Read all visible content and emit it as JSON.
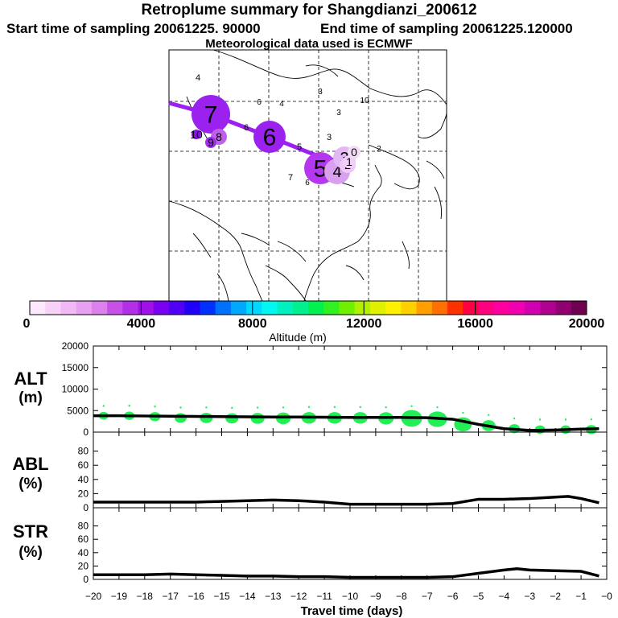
{
  "header": {
    "title": "Retroplume summary for Shangdianzi_200612",
    "start_time": "Start time of sampling 20061225. 90000",
    "end_time": "End time of sampling 20061225.120000",
    "met_data": "Meteorological data used is ECMWF"
  },
  "map": {
    "markers": [
      {
        "label": "7",
        "size": "large",
        "color": "#9b22ee"
      },
      {
        "label": "6",
        "size": "large",
        "color": "#9b22ee"
      },
      {
        "label": "5",
        "size": "large",
        "color": "#b438ee"
      },
      {
        "label": "4",
        "size": "medium",
        "color": "#d9a0f0"
      },
      {
        "label": "3",
        "size": "medium",
        "color": "#e4b8f4"
      },
      {
        "label": "2",
        "size": "small",
        "color": "#ecc8f6"
      },
      {
        "label": "1",
        "size": "small",
        "color": "#f0d0f8"
      },
      {
        "label": "0",
        "size": "small",
        "color": "#f4dcf8"
      },
      {
        "label": "8",
        "size": "small",
        "color": "#c060e8"
      },
      {
        "label": "9",
        "size": "small",
        "color": "#a030e8"
      },
      {
        "label": "10",
        "size": "small",
        "color": "#8a10e8"
      },
      {
        "label": "4",
        "size": "label",
        "color": "#000000"
      },
      {
        "label": "5",
        "size": "label",
        "color": "#000000"
      },
      {
        "label": "6",
        "size": "label",
        "color": "#000000"
      },
      {
        "label": "7",
        "size": "label",
        "color": "#000000"
      },
      {
        "label": "3",
        "size": "label",
        "color": "#000000"
      }
    ]
  },
  "colorbar": {
    "ticks": [
      "0",
      "4000",
      "8000",
      "12000",
      "16000",
      "20000"
    ],
    "label": "Altitude (m)",
    "colors": [
      "#fde8fd",
      "#f8d0f8",
      "#f0b8f4",
      "#e8a0f0",
      "#dc80ec",
      "#c850e8",
      "#b430e8",
      "#a010e8",
      "#7a00f0",
      "#5000f4",
      "#2000f8",
      "#0030ff",
      "#0070ff",
      "#00a8ff",
      "#00d8ff",
      "#00f8f0",
      "#00f0c0",
      "#00f090",
      "#00f050",
      "#30f020",
      "#70f000",
      "#b0f000",
      "#e0f000",
      "#fff000",
      "#ffd000",
      "#ffa000",
      "#ff7000",
      "#ff3000",
      "#ff0040",
      "#ff0080",
      "#ff00a0",
      "#f000b0",
      "#d000b0",
      "#b00090",
      "#900070",
      "#700050"
    ]
  },
  "panels": {
    "alt_label_1": "ALT",
    "alt_label_2": "(m)",
    "abl_label_1": "ABL",
    "abl_label_2": "(%)",
    "str_label_1": "STR",
    "str_label_2": "(%)",
    "xaxis_label": "Travel time (days)"
  },
  "chart_data": [
    {
      "type": "line",
      "title": "ALT (m)",
      "x": [
        -20,
        -19,
        -18,
        -17,
        -16,
        -15,
        -14,
        -13,
        -12,
        -11,
        -10,
        -9,
        -8,
        -7,
        -6,
        -5,
        -4,
        -3,
        -2,
        -1,
        -0.3
      ],
      "values": [
        3800,
        3800,
        3750,
        3700,
        3650,
        3600,
        3550,
        3500,
        3500,
        3450,
        3400,
        3400,
        3400,
        3350,
        3000,
        1800,
        800,
        400,
        500,
        700,
        800
      ],
      "bubbles": [
        {
          "x": -19.6,
          "y": 3800,
          "size": 1.2
        },
        {
          "x": -18.6,
          "y": 3800,
          "size": 1.3
        },
        {
          "x": -17.6,
          "y": 3600,
          "size": 1.4
        },
        {
          "x": -16.6,
          "y": 3300,
          "size": 1.5
        },
        {
          "x": -15.6,
          "y": 3300,
          "size": 1.6
        },
        {
          "x": -14.6,
          "y": 3200,
          "size": 1.6
        },
        {
          "x": -13.6,
          "y": 3200,
          "size": 1.7
        },
        {
          "x": -12.6,
          "y": 3200,
          "size": 1.8
        },
        {
          "x": -11.6,
          "y": 3300,
          "size": 1.8
        },
        {
          "x": -10.6,
          "y": 3300,
          "size": 1.8
        },
        {
          "x": -9.6,
          "y": 3300,
          "size": 1.8
        },
        {
          "x": -8.6,
          "y": 3200,
          "size": 1.9
        },
        {
          "x": -7.6,
          "y": 3200,
          "size": 2.6
        },
        {
          "x": -6.6,
          "y": 3000,
          "size": 2.4
        },
        {
          "x": -5.6,
          "y": 1800,
          "size": 2.2
        },
        {
          "x": -4.6,
          "y": 1500,
          "size": 1.7
        },
        {
          "x": -3.6,
          "y": 800,
          "size": 1.4
        },
        {
          "x": -2.6,
          "y": 600,
          "size": 1.3
        },
        {
          "x": -1.6,
          "y": 600,
          "size": 1.3
        },
        {
          "x": -0.6,
          "y": 600,
          "size": 1.4
        }
      ],
      "xlim": [
        -20,
        0
      ],
      "ylim": [
        0,
        20000
      ],
      "yticks": [
        0,
        5000,
        10000,
        15000,
        20000
      ],
      "ylabel": "ALT (m)"
    },
    {
      "type": "line",
      "title": "ABL (%)",
      "x": [
        -20,
        -19,
        -18,
        -17,
        -16,
        -15,
        -14,
        -13,
        -12,
        -11,
        -10,
        -9,
        -8,
        -7,
        -6,
        -5,
        -4,
        -3,
        -2,
        -1.5,
        -1,
        -0.3
      ],
      "values": [
        8,
        8,
        8,
        8,
        8,
        9,
        10,
        11,
        10,
        8,
        5,
        5,
        5,
        5,
        6,
        12,
        12,
        13,
        15,
        16,
        13,
        7
      ],
      "xlim": [
        -20,
        0
      ],
      "ylim": [
        0,
        100
      ],
      "yticks": [
        0,
        20,
        40,
        60,
        80
      ],
      "ylabel": "ABL (%)"
    },
    {
      "type": "line",
      "title": "STR (%)",
      "x": [
        -20,
        -19,
        -18,
        -17,
        -16,
        -15,
        -14,
        -13,
        -12,
        -11,
        -10,
        -9,
        -8,
        -7,
        -6,
        -5,
        -4,
        -3.5,
        -3,
        -2,
        -1,
        -0.3
      ],
      "values": [
        7,
        7,
        7,
        8,
        7,
        6,
        5,
        5,
        4,
        4,
        3,
        3,
        3,
        3,
        4,
        9,
        14,
        16,
        14,
        13,
        12,
        5
      ],
      "xlim": [
        -20,
        0
      ],
      "ylim": [
        0,
        100
      ],
      "yticks": [
        0,
        20,
        40,
        60,
        80
      ],
      "ylabel": "STR (%)",
      "xticks": [
        "-20",
        "-19",
        "-18",
        "-17",
        "-16",
        "-15",
        "-14",
        "-13",
        "-12",
        "-11",
        "-10",
        "-9",
        "-8",
        "-7",
        "-6",
        "-5",
        "-4",
        "-3",
        "-2",
        "-1",
        "-0"
      ],
      "xlabel": "Travel time (days)"
    }
  ]
}
